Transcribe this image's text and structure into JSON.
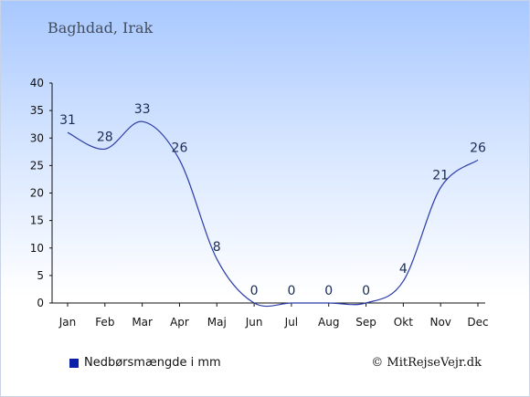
{
  "header": {
    "location": "Baghdad, Irak"
  },
  "legend": {
    "label": "Nedbørsmængde i mm"
  },
  "footer": {
    "copyright": "© MitRejseVejr.dk"
  },
  "colors": {
    "line": "#2b3ca8",
    "swatch": "#0a1fa8",
    "axis": "#111111"
  },
  "chart_data": {
    "type": "line",
    "categories": [
      "Jan",
      "Feb",
      "Mar",
      "Apr",
      "Maj",
      "Jun",
      "Jul",
      "Aug",
      "Sep",
      "Okt",
      "Nov",
      "Dec"
    ],
    "series": [
      {
        "name": "Nedbørsmængde i mm",
        "values": [
          31,
          28,
          33,
          26,
          8,
          0,
          0,
          0,
          0,
          4,
          21,
          26
        ]
      }
    ],
    "data_labels": [
      "31",
      "28",
      "33",
      "26",
      "8",
      "0",
      "0",
      "0",
      "0",
      "4",
      "21",
      "26"
    ],
    "y_ticks": [
      0,
      5,
      10,
      15,
      20,
      25,
      30,
      35,
      40
    ],
    "ylim": [
      0,
      40
    ],
    "grid": false,
    "legend_position": "bottom-left"
  }
}
